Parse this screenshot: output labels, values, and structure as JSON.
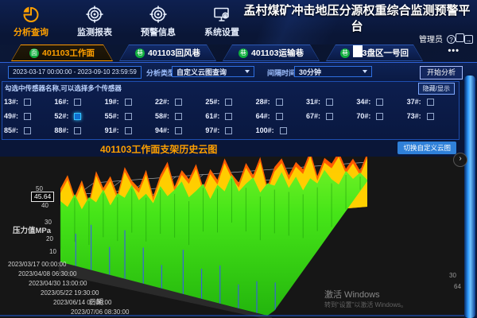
{
  "header": {
    "title": "孟村煤矿冲击地压分源权重综合监测预警平台",
    "nav": [
      {
        "label": "分析查询",
        "icon": "pie-chart-icon",
        "active": true
      },
      {
        "label": "监测报表",
        "icon": "target-icon",
        "active": false
      },
      {
        "label": "预警信息",
        "icon": "target-icon",
        "active": false
      },
      {
        "label": "系统设置",
        "icon": "monitor-gear-icon",
        "active": false
      }
    ],
    "user": {
      "name": "管理员",
      "icons": [
        "help-icon",
        "message-icon",
        "logout-icon"
      ]
    }
  },
  "tabs": {
    "more_label": "•••",
    "items": [
      {
        "badge": "面",
        "label": "401103工作面",
        "active": true
      },
      {
        "badge": "巷",
        "label": "401103回风巷",
        "active": false
      },
      {
        "badge": "巷",
        "label": "401103运输巷",
        "active": false
      },
      {
        "badge": "巷",
        "label": "403盘区一号回",
        "active": false
      }
    ]
  },
  "filters": {
    "date_range": "2023-03-17 00:00:00 - 2023-09-10 23:59:59",
    "analysis_type_label": "分析类型:",
    "analysis_type_value": "自定义云图查询",
    "interval_label": "间隔时间:",
    "interval_value": "30分钟",
    "start_button": "开始分析"
  },
  "sensor_panel": {
    "hint": "勾选中传感器名称,可以选择多个传感器",
    "toggle_button": "隐藏/显示",
    "rows": [
      [
        {
          "label": "13#",
          "checked": false
        },
        {
          "label": "16#",
          "checked": false
        },
        {
          "label": "19#",
          "checked": false
        },
        {
          "label": "22#",
          "checked": false
        },
        {
          "label": "25#",
          "checked": false
        },
        {
          "label": "28#",
          "checked": false
        },
        {
          "label": "31#",
          "checked": false
        },
        {
          "label": "34#",
          "checked": false
        },
        {
          "label": "37#",
          "checked": false
        }
      ],
      [
        {
          "label": "49#",
          "checked": false
        },
        {
          "label": "52#",
          "checked": true
        },
        {
          "label": "55#",
          "checked": false
        },
        {
          "label": "58#",
          "checked": false
        },
        {
          "label": "61#",
          "checked": false
        },
        {
          "label": "64#",
          "checked": false
        },
        {
          "label": "67#",
          "checked": false
        },
        {
          "label": "70#",
          "checked": false
        },
        {
          "label": "73#",
          "checked": false
        }
      ],
      [
        {
          "label": "85#",
          "checked": false
        },
        {
          "label": "88#",
          "checked": false
        },
        {
          "label": "91#",
          "checked": false
        },
        {
          "label": "94#",
          "checked": false
        },
        {
          "label": "97#",
          "checked": false
        },
        {
          "label": "100#",
          "checked": false
        }
      ]
    ]
  },
  "section": {
    "title": "401103工作面支架历史云图",
    "switch_button": "切换自定义云图"
  },
  "chart_data": {
    "type": "surface-3d",
    "title": "401103工作面支架历史云图",
    "zlabel": "压力值MPa",
    "xlabel": "日期",
    "zlim": [
      0,
      50
    ],
    "z_ticks": [
      "50",
      "40",
      "30",
      "20",
      "10"
    ],
    "tooltip_value": "45.64",
    "x_ticks": [
      "2023/03/17 00:00:00",
      "2023/04/08 06:30:00",
      "2023/04/30 13:00:00",
      "2023/05/22 19:30:00",
      "2023/06/14 02:00:00",
      "2023/07/06 08:30:00"
    ],
    "right_ticks": [
      "30",
      "64"
    ],
    "legend_position": "none",
    "grid": true,
    "colors": {
      "high": "#ff4d00",
      "mid": "#ffd800",
      "low": "#35e012",
      "streak": "#3a52ff"
    },
    "surface": {
      "green": [
        64,
        55,
        72,
        50,
        66,
        58,
        75,
        52,
        68,
        61,
        78,
        56,
        64,
        50,
        73,
        58,
        66,
        77,
        54,
        62,
        71,
        49,
        68,
        58,
        80,
        56,
        66,
        74,
        52,
        64,
        60,
        78,
        55,
        70,
        50,
        66,
        58,
        76,
        62,
        54,
        72,
        60,
        68,
        57
      ],
      "orange": [
        20,
        36,
        8,
        28,
        0,
        38,
        16,
        30,
        6,
        40,
        22,
        12,
        34,
        0,
        26,
        42,
        10,
        30,
        18,
        36,
        6,
        28,
        14,
        40,
        20,
        8,
        32,
        16,
        38,
        0,
        24,
        34,
        12,
        28,
        18,
        40,
        8,
        30,
        22,
        36,
        14,
        26,
        10,
        32
      ],
      "blue_streaks": [
        [
          0.05,
          42
        ],
        [
          0.1,
          58
        ],
        [
          0.16,
          36
        ],
        [
          0.21,
          62
        ],
        [
          0.27,
          46
        ],
        [
          0.33,
          30
        ],
        [
          0.4,
          56
        ],
        [
          0.46,
          38
        ],
        [
          0.52,
          48
        ],
        [
          0.58,
          30
        ],
        [
          0.64,
          40
        ],
        [
          0.7,
          34
        ]
      ]
    }
  },
  "watermark": {
    "line1": "激活 Windows",
    "line2": "转到“设置”以激活 Windows。"
  }
}
